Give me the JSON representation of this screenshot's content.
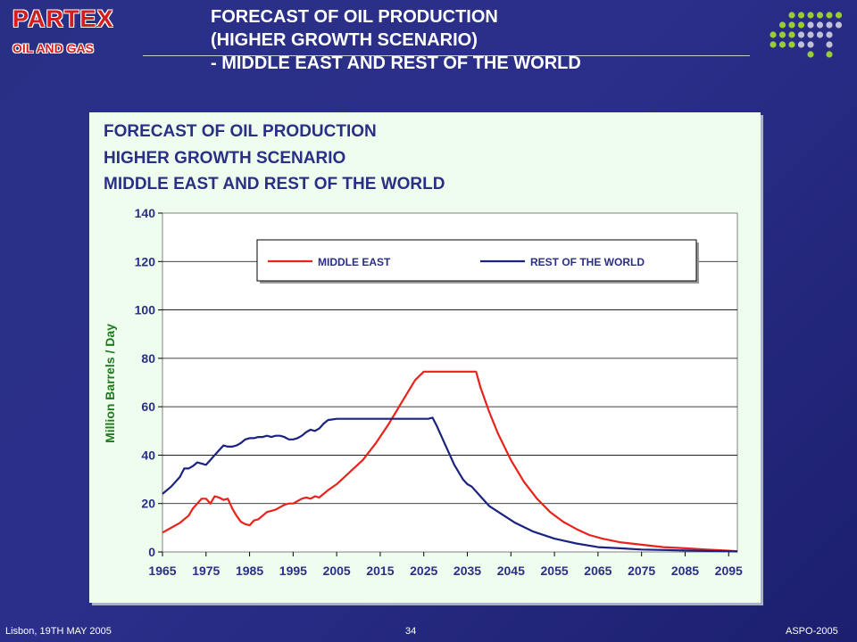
{
  "header": {
    "logo_title": "PARTEX",
    "logo_subtitle": "OIL AND GAS",
    "title_lines": [
      "FORECAST OF OIL PRODUCTION",
      "(HIGHER GROWTH SCENARIO)",
      "- MIDDLE EAST AND REST OF THE WORLD"
    ]
  },
  "footer": {
    "left": "Lisbon, 19TH MAY 2005",
    "page": "34",
    "right": "ASPO-2005"
  },
  "colors": {
    "background": "#2a2f86",
    "panel": "#eefdee",
    "middle_east": "#e8231b",
    "rest_of_world": "#1a237e",
    "dot_green": "#9acd32",
    "dot_gray": "#c0c0d8"
  },
  "chart_data": {
    "type": "line",
    "title_lines": [
      "FORECAST OF OIL PRODUCTION",
      "HIGHER GROWTH SCENARIO",
      "MIDDLE EAST AND REST OF THE WORLD"
    ],
    "xlabel": "",
    "ylabel": "Million Barrels / Day",
    "xlim": [
      1965,
      2097
    ],
    "ylim": [
      0,
      140
    ],
    "yticks": [
      0,
      20,
      40,
      60,
      80,
      100,
      120,
      140
    ],
    "xticks": [
      1965,
      1975,
      1985,
      1995,
      2005,
      2015,
      2025,
      2035,
      2045,
      2055,
      2065,
      2075,
      2085,
      2095
    ],
    "grid": "horizontal",
    "legend_position": "top",
    "series": [
      {
        "name": "MIDDLE EAST",
        "color": "#e8231b",
        "x": [
          1965,
          1967,
          1969,
          1971,
          1972,
          1973,
          1974,
          1975,
          1976,
          1977,
          1978,
          1979,
          1980,
          1981,
          1982,
          1983,
          1984,
          1985,
          1986,
          1987,
          1988,
          1989,
          1990,
          1991,
          1992,
          1993,
          1994,
          1995,
          1996,
          1997,
          1998,
          1999,
          2000,
          2001,
          2002,
          2003,
          2005,
          2008,
          2011,
          2014,
          2017,
          2020,
          2023,
          2025,
          2026,
          2028,
          2030,
          2034,
          2036,
          2037,
          2038,
          2040,
          2042,
          2045,
          2048,
          2051,
          2054,
          2057,
          2060,
          2063,
          2066,
          2070,
          2075,
          2080,
          2085,
          2090,
          2095,
          2097
        ],
        "y": [
          8,
          10,
          12,
          15,
          18,
          20,
          22,
          22,
          20,
          23,
          22.5,
          21.5,
          22,
          18,
          15,
          12.5,
          11.5,
          11,
          13,
          13.5,
          15,
          16.5,
          17,
          17.5,
          18.5,
          19.5,
          20,
          20,
          21,
          22,
          22.5,
          22,
          23,
          22.5,
          24,
          25.5,
          28,
          33,
          38,
          45,
          53,
          62,
          71,
          74.5,
          74.5,
          74.5,
          74.5,
          74.5,
          74.5,
          74.5,
          68,
          58,
          49,
          38,
          29,
          22,
          16.5,
          12.5,
          9.5,
          7,
          5.5,
          4,
          3,
          2,
          1.5,
          1,
          0.5,
          0.3
        ]
      },
      {
        "name": "REST OF THE WORLD",
        "color": "#1a237e",
        "x": [
          1965,
          1967,
          1969,
          1970,
          1971,
          1972,
          1973,
          1974,
          1975,
          1976,
          1977,
          1978,
          1979,
          1980,
          1981,
          1982,
          1983,
          1984,
          1985,
          1986,
          1987,
          1988,
          1989,
          1990,
          1991,
          1992,
          1993,
          1994,
          1995,
          1996,
          1997,
          1998,
          1999,
          2000,
          2001,
          2002,
          2003,
          2005,
          2010,
          2015,
          2020,
          2024,
          2026,
          2027,
          2028,
          2030,
          2032,
          2034,
          2035,
          2036,
          2038,
          2040,
          2043,
          2046,
          2050,
          2055,
          2060,
          2065,
          2070,
          2075,
          2080,
          2085,
          2090,
          2095,
          2097
        ],
        "y": [
          24,
          27,
          31,
          34.5,
          34.5,
          35.5,
          37,
          36.5,
          36,
          38,
          40,
          42,
          44,
          43.5,
          43.5,
          44,
          45,
          46.5,
          47,
          47,
          47.5,
          47.5,
          48,
          47.5,
          48,
          48,
          47.5,
          46.5,
          46.5,
          47,
          48,
          49.5,
          50.5,
          50,
          51,
          53,
          54.5,
          55,
          55,
          55,
          55,
          55,
          55,
          55.5,
          52,
          44,
          36,
          30,
          28,
          27,
          23,
          19,
          15.5,
          12,
          8.5,
          5.5,
          3.5,
          2,
          1.5,
          1,
          0.8,
          0.6,
          0.4,
          0.3,
          0.2
        ]
      }
    ]
  }
}
